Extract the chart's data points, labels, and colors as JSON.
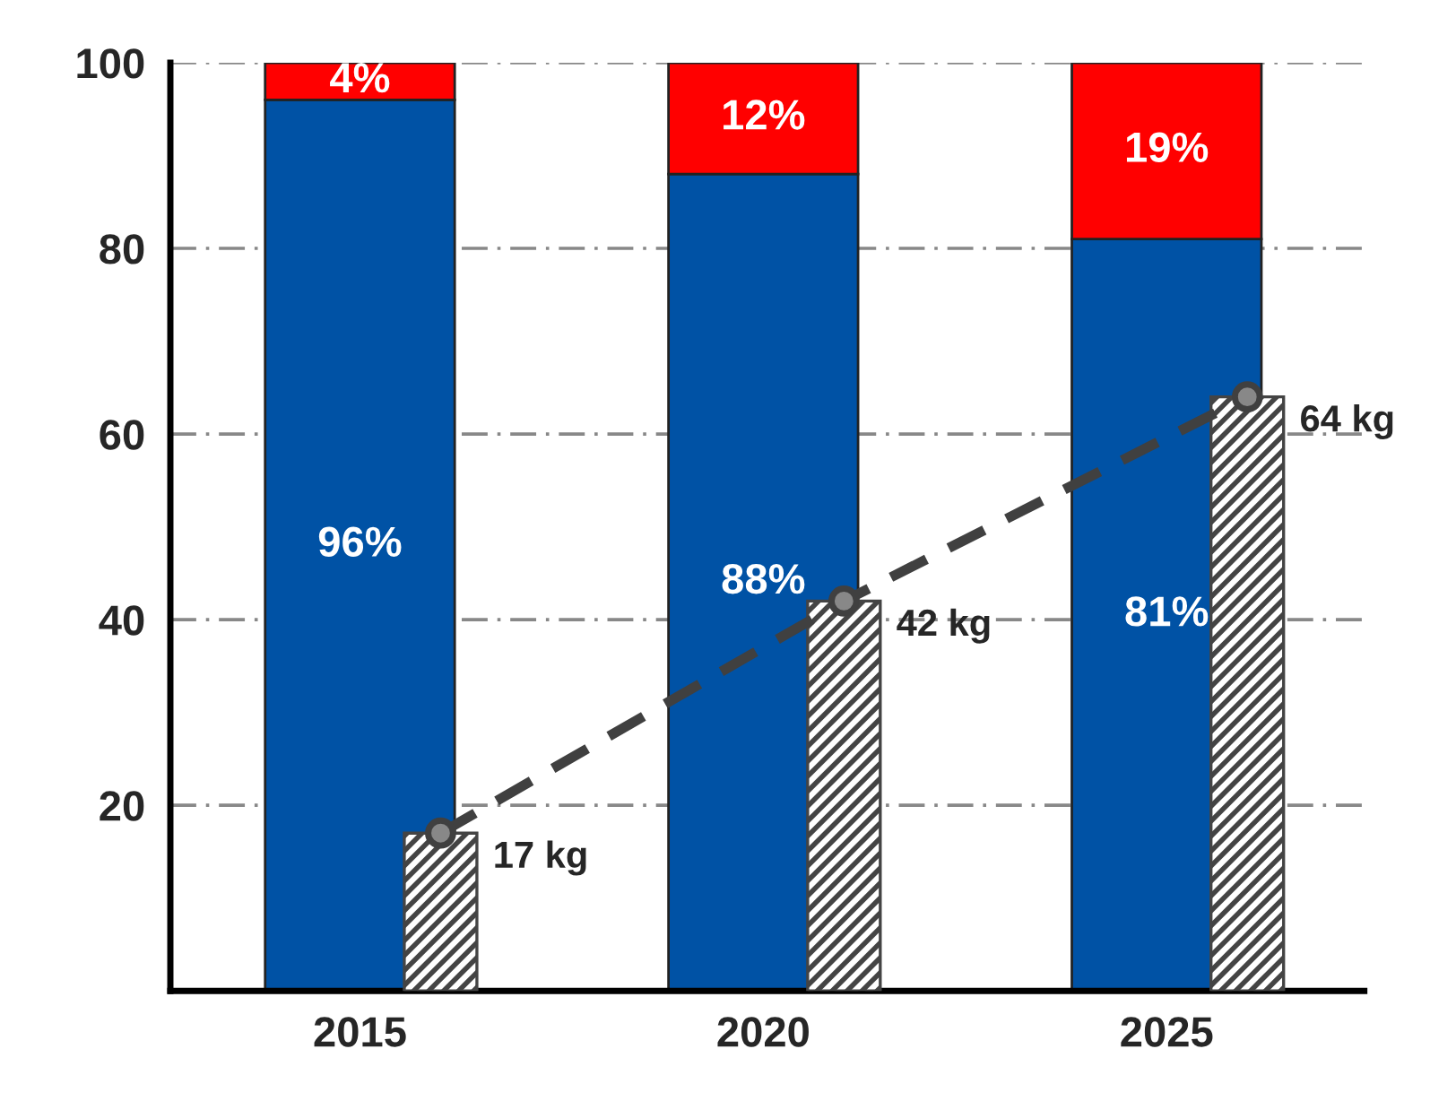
{
  "chart_data": [
    {
      "type": "bar",
      "stacked": true,
      "categories": [
        "2015",
        "2020",
        "2025"
      ],
      "series": [
        {
          "color": "#0052a5",
          "values": [
            96,
            88,
            81
          ],
          "value_labels": [
            "96%",
            "88%",
            "81%"
          ]
        },
        {
          "color": "#ff0000",
          "values": [
            4,
            12,
            19
          ],
          "value_labels": [
            "4%",
            "12%",
            "19%"
          ]
        }
      ],
      "ylim": [
        0,
        100
      ],
      "yticks": [
        {
          "value": 0,
          "label": null
        },
        20,
        40,
        60,
        80,
        100
      ],
      "grid": "y",
      "legend": false
    },
    {
      "type": "bar",
      "categories": [
        "2015",
        "2020",
        "2025"
      ],
      "series": [
        {
          "color": "#444444",
          "values": [
            17,
            42,
            64
          ]
        },
        {
          "type": "line",
          "color": "#404040",
          "values": [
            17,
            42,
            64
          ],
          "value_labels": [
            "17 kg",
            "42 kg",
            "64 kg"
          ],
          "marker": "circle",
          "line_style": "dashed"
        }
      ],
      "ylim": [
        0,
        100
      ],
      "tick_labels": false,
      "legend": false
    }
  ]
}
